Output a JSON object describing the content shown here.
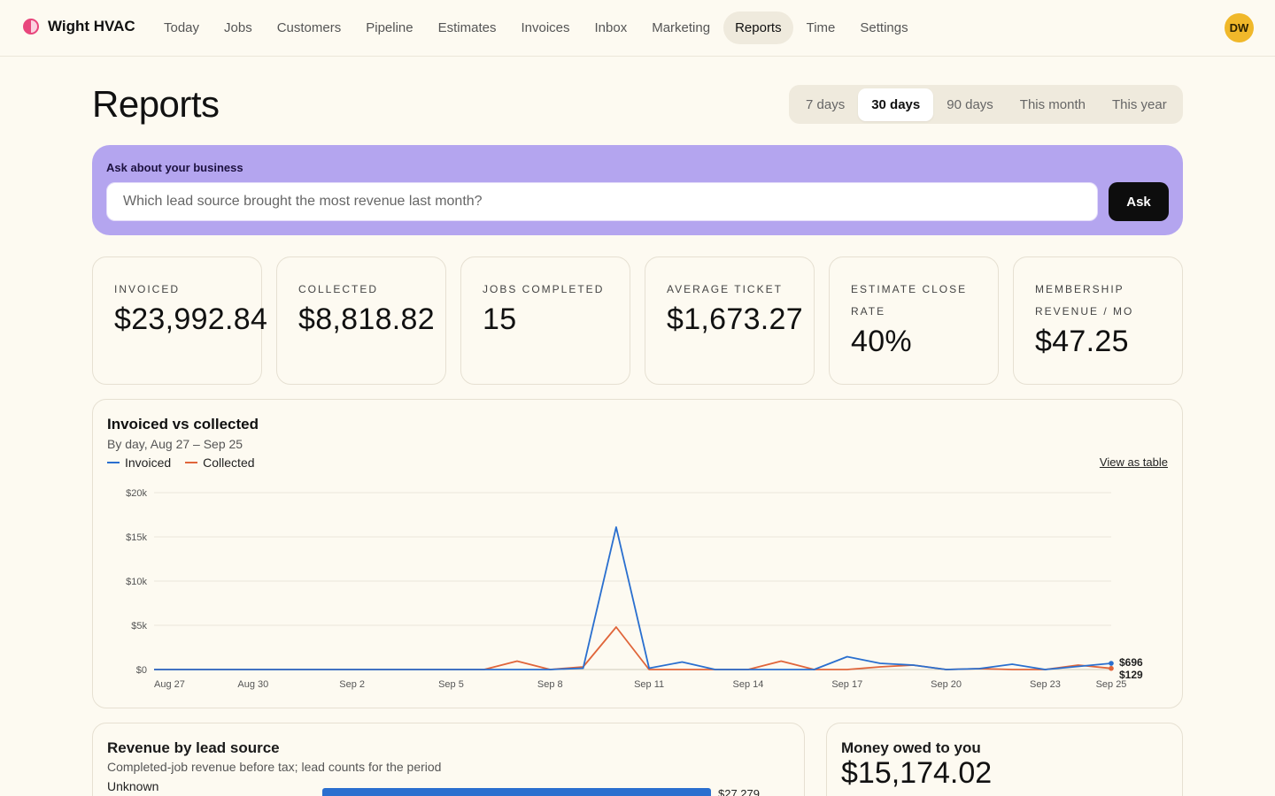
{
  "brand": {
    "name": "Wight HVAC"
  },
  "nav": {
    "items": [
      "Today",
      "Jobs",
      "Customers",
      "Pipeline",
      "Estimates",
      "Invoices",
      "Inbox",
      "Marketing",
      "Reports",
      "Time",
      "Settings"
    ],
    "active": "Reports"
  },
  "user": {
    "initials": "DW"
  },
  "page": {
    "title": "Reports"
  },
  "range": {
    "options": [
      "7 days",
      "30 days",
      "90 days",
      "This month",
      "This year"
    ],
    "selected": "30 days"
  },
  "ask": {
    "label": "Ask about your business",
    "value": "Which lead source brought the most revenue last month?",
    "button": "Ask"
  },
  "kpis": [
    {
      "label": "Invoiced",
      "value": "$23,992.84"
    },
    {
      "label": "Collected",
      "value": "$8,818.82"
    },
    {
      "label": "Jobs completed",
      "value": "15"
    },
    {
      "label": "Average ticket",
      "value": "$1,673.27"
    },
    {
      "label": "Estimate close rate",
      "value": "40%"
    },
    {
      "label": "Membership revenue / mo",
      "value": "$47.25"
    }
  ],
  "chart_card": {
    "title": "Invoiced vs collected",
    "subtitle": "By day, Aug 27 – Sep 25",
    "view_table": "View as table"
  },
  "chart_data": {
    "type": "line",
    "title": "Invoiced vs collected",
    "subtitle": "By day, Aug 27 – Sep 25",
    "x": [
      "Aug 27",
      "Aug 28",
      "Aug 29",
      "Aug 30",
      "Aug 31",
      "Sep 1",
      "Sep 2",
      "Sep 3",
      "Sep 4",
      "Sep 5",
      "Sep 6",
      "Sep 7",
      "Sep 8",
      "Sep 9",
      "Sep 10",
      "Sep 11",
      "Sep 12",
      "Sep 13",
      "Sep 14",
      "Sep 15",
      "Sep 16",
      "Sep 17",
      "Sep 18",
      "Sep 19",
      "Sep 20",
      "Sep 21",
      "Sep 22",
      "Sep 23",
      "Sep 24",
      "Sep 25"
    ],
    "x_tick_labels": [
      "Aug 27",
      "Aug 30",
      "Sep 2",
      "Sep 5",
      "Sep 8",
      "Sep 11",
      "Sep 14",
      "Sep 17",
      "Sep 20",
      "Sep 23",
      "Sep 25"
    ],
    "y_ticks": [
      0,
      5000,
      10000,
      15000,
      20000
    ],
    "y_tick_labels": [
      "$0",
      "$5k",
      "$10k",
      "$15k",
      "$20k"
    ],
    "ylim": [
      0,
      20000
    ],
    "grid": true,
    "legend": "top-left",
    "series": [
      {
        "name": "Invoiced",
        "color": "#2a6fcf",
        "values": [
          0,
          0,
          0,
          0,
          0,
          0,
          0,
          0,
          0,
          0,
          0,
          0,
          0,
          150,
          16100,
          150,
          850,
          0,
          0,
          0,
          0,
          1450,
          700,
          500,
          0,
          100,
          600,
          0,
          350,
          696
        ],
        "end_label": "$696"
      },
      {
        "name": "Collected",
        "color": "#e0653a",
        "values": [
          0,
          0,
          0,
          0,
          0,
          0,
          0,
          0,
          0,
          0,
          0,
          950,
          0,
          300,
          4800,
          0,
          0,
          0,
          0,
          950,
          0,
          0,
          300,
          500,
          0,
          100,
          0,
          0,
          500,
          129
        ],
        "end_label": "$129"
      }
    ]
  },
  "revenue_card": {
    "title": "Revenue by lead source",
    "subtitle": "Completed-job revenue before tax; lead counts for the period",
    "rows": [
      {
        "label": "Unknown",
        "value": "$27,279"
      }
    ]
  },
  "owed_card": {
    "title": "Money owed to you",
    "value": "$15,174.02"
  }
}
